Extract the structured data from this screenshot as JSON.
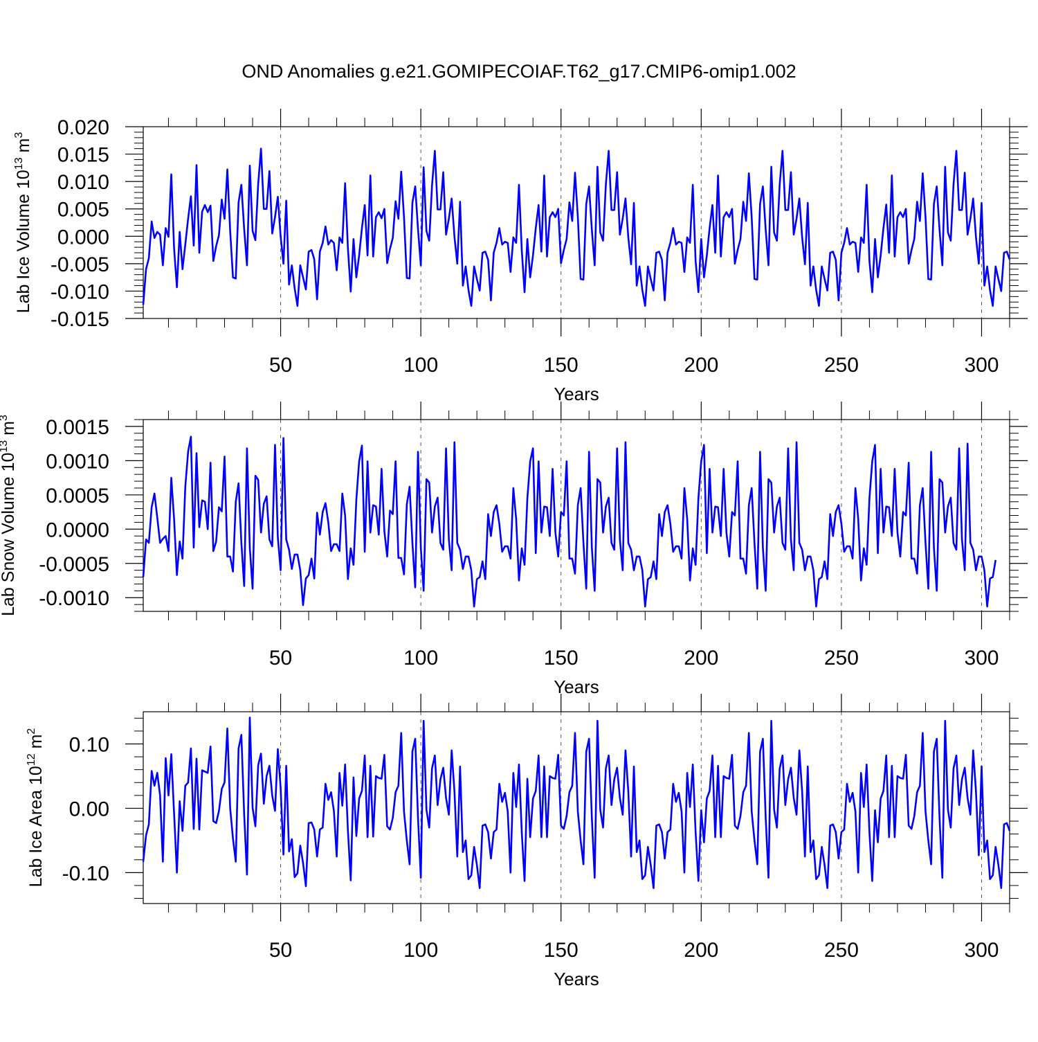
{
  "title": "OND Anomalies g.e21.GOMIPECOIAF.T62_g17.CMIP6-omip1.002",
  "series_color": "#0000ff",
  "chart_data": [
    {
      "type": "line",
      "ylabel": "Lab Ice Volume 10",
      "ylabel_exp": "13",
      "ylabel_unit": " m",
      "ylabel_unit_exp": "3",
      "xlabel": "Years",
      "xlim": [
        1,
        310
      ],
      "ylim": [
        -0.015,
        0.02
      ],
      "xticks": [
        50,
        100,
        150,
        200,
        250,
        300
      ],
      "xtick_labels": [
        "50",
        "100",
        "150",
        "200",
        "250",
        "300"
      ],
      "yticks": [
        -0.015,
        -0.01,
        -0.005,
        0.0,
        0.005,
        0.01,
        0.015,
        0.02
      ],
      "ytick_labels": [
        "-0.015",
        "-0.010",
        "-0.005",
        "0.000",
        "0.005",
        "0.010",
        "0.015",
        "0.020"
      ],
      "x_start": 1,
      "values": [
        -0.0125,
        -0.006,
        -0.004,
        0.0027,
        -0.0003,
        0.0008,
        0.0003,
        -0.0053,
        0.0015,
        -0.0001,
        0.0113,
        -0.0022,
        -0.0093,
        0.0008,
        -0.006,
        -0.0015,
        0.0032,
        0.0073,
        -0.0017,
        0.013,
        -0.003,
        0.0045,
        0.0057,
        0.0044,
        0.0056,
        -0.0045,
        -0.0018,
        0.0002,
        0.0067,
        0.0032,
        0.0122,
        0.001,
        -0.0075,
        -0.0077,
        0.0062,
        0.0094,
        0.0013,
        -0.0053,
        0.0129,
        0.001,
        -0.0007,
        0.0096,
        0.016,
        0.005,
        0.005,
        0.0119,
        0.0005,
        0.0035,
        0.0072,
        0.0,
        -0.005,
        0.0065,
        -0.0088,
        -0.0053,
        -0.0095,
        -0.0127,
        -0.0053,
        -0.0075,
        -0.0097,
        -0.0028,
        -0.0025,
        -0.0042,
        -0.0115,
        -0.0028,
        -0.0012,
        0.0018,
        -0.0015,
        -0.0007,
        -0.0012,
        -0.0062,
        -0.0002,
        -0.0012,
        0.0097,
        -0.0022,
        -0.0101,
        -0.0005,
        -0.0075,
        -0.0035,
        0.0015,
        0.0057,
        -0.0035,
        0.0111,
        -0.0037,
        0.0035,
        0.0044,
        0.0033,
        0.005,
        -0.0049,
        -0.0023,
        -0.0003,
        0.0064,
        0.0032,
        0.0118,
        0.0035,
        -0.0076,
        -0.0077,
        0.0061,
        0.0091,
        0.0013,
        -0.0053,
        0.0126,
        0.001,
        -0.0008,
        0.0093,
        0.0156,
        0.0049,
        0.0049,
        0.0117,
        0.0003,
        0.0032,
        0.0069,
        -0.0001,
        -0.005,
        0.0063,
        -0.009,
        -0.0055,
        -0.0098,
        -0.0127,
        -0.0055,
        -0.0078,
        -0.0099,
        -0.003,
        -0.0028,
        -0.0043,
        -0.0117,
        -0.003,
        -0.0012,
        0.0015,
        -0.0015,
        -0.001,
        -0.0012,
        -0.0065,
        -0.0002,
        -0.0012,
        0.0094,
        -0.0025,
        -0.0102,
        -0.0005,
        -0.0075,
        -0.0035,
        0.0015,
        0.0057,
        -0.0028,
        0.0111,
        -0.0037,
        0.0035,
        0.0044,
        0.0035,
        0.005,
        -0.0049,
        -0.0025,
        -0.0005,
        0.0062,
        0.0028,
        0.0116,
        0.0035,
        -0.0078,
        -0.0079,
        0.0059,
        0.0091,
        0.0012,
        -0.0053,
        0.0127,
        0.0007,
        -0.0008,
        0.0095,
        0.0156,
        0.0048,
        0.0048,
        0.0117,
        0.0003,
        0.0032,
        0.0069,
        -0.0002,
        -0.0051,
        0.0061,
        -0.009,
        -0.0055,
        -0.0098,
        -0.0127,
        -0.0055,
        -0.0078,
        -0.0099,
        -0.003,
        -0.0028,
        -0.0043,
        -0.0117,
        -0.003,
        -0.0012,
        0.0015,
        -0.0015,
        -0.001,
        -0.0012,
        -0.0065,
        -0.0002,
        -0.0012,
        0.0094,
        -0.0045,
        -0.0102,
        -0.0005,
        -0.0075,
        -0.0035,
        0.0015,
        0.0057,
        -0.003,
        0.0111,
        -0.0037,
        0.0035,
        0.0044,
        0.0035,
        0.005,
        -0.005,
        -0.0025,
        -0.0005,
        0.0063,
        0.0028,
        0.0115,
        0.0035,
        -0.0078,
        -0.0079,
        0.0059,
        0.0091,
        0.0012,
        -0.0053,
        0.0127,
        0.0007,
        -0.0008,
        0.0095,
        0.0156,
        0.0048,
        0.0048,
        0.0117,
        0.0003,
        0.0032,
        0.0069,
        -0.0002,
        -0.0051,
        0.0061,
        -0.009,
        -0.0055,
        -0.0098,
        -0.0127,
        -0.0055,
        -0.0078,
        -0.0099,
        -0.003,
        -0.0028,
        -0.0043,
        -0.0117,
        -0.003,
        -0.0012,
        0.0015,
        -0.0015,
        -0.001,
        -0.0012,
        -0.0065,
        -0.0002,
        -0.0012,
        0.0094,
        -0.0045,
        -0.0102,
        -0.0005,
        -0.0075,
        -0.0035,
        0.0015,
        0.0058,
        -0.003,
        0.0111,
        -0.0037,
        0.0035,
        0.0044,
        0.0035,
        0.005,
        -0.005,
        -0.0025,
        -0.0005,
        0.0063,
        0.0028,
        0.0115,
        0.0035,
        -0.0078,
        -0.0079,
        0.0059,
        0.0091,
        0.0012,
        -0.0053,
        0.0127,
        0.0007,
        -0.0008,
        0.0095,
        0.0156,
        0.0048,
        0.0048,
        0.0116,
        0.0003,
        0.0032,
        0.0069,
        -0.0002,
        -0.005,
        0.0061,
        -0.009,
        -0.0055,
        -0.0098,
        -0.0127,
        -0.0055,
        -0.0078,
        -0.01,
        -0.003,
        -0.0028,
        -0.0042
      ]
    },
    {
      "type": "line",
      "ylabel": "Lab Snow Volume 10",
      "ylabel_exp": "13",
      "ylabel_unit": " m",
      "ylabel_unit_exp": "3",
      "xlabel": "Years",
      "xlim": [
        1,
        310
      ],
      "ylim": [
        -0.0012,
        0.0016
      ],
      "xticks": [
        50,
        100,
        150,
        200,
        250,
        300
      ],
      "xtick_labels": [
        "50",
        "100",
        "150",
        "200",
        "250",
        "300"
      ],
      "yticks": [
        -0.001,
        -0.0005,
        0.0,
        0.0005,
        0.001,
        0.0015
      ],
      "ytick_labels": [
        "-0.0010",
        "-0.0005",
        "0.0000",
        "0.0005",
        "0.0010",
        "0.0015"
      ],
      "x_start": 1,
      "values": [
        -0.0007,
        -0.00015,
        -0.0002,
        0.00032,
        0.00052,
        0.00017,
        -0.0002,
        -0.00014,
        -0.0001,
        -0.00032,
        0.00075,
        0.00015,
        -0.00067,
        -0.00018,
        -0.00043,
        0.00062,
        0.00113,
        0.00135,
        -0.00027,
        0.00111,
        3e-05,
        0.00042,
        0.0004,
        0.0,
        0.00097,
        -0.00032,
        -0.00018,
        0.00032,
        0.00026,
        0.00106,
        -0.0004,
        -0.0004,
        -0.00062,
        0.0004,
        0.00067,
        -0.0002,
        -0.00083,
        0.00118,
        -0.00027,
        -0.00087,
        0.00078,
        0.00072,
        -5e-05,
        0.00037,
        0.00048,
        -0.00015,
        -0.00025,
        0.00123,
        -0.00012,
        -0.0006,
        0.00133,
        -0.00015,
        -0.0003,
        -0.00058,
        -0.00037,
        -0.00037,
        -0.0006,
        -0.00111,
        -0.00072,
        -0.00067,
        -0.00043,
        -0.00072,
        0.00024,
        -8e-05,
        0.00025,
        0.00038,
        0.0001,
        -0.00032,
        -0.00022,
        -0.00022,
        -0.00032,
        0.00052,
        0.0002,
        -0.00073,
        -0.00028,
        -0.00052,
        0.00043,
        0.00099,
        0.00122,
        -0.00033,
        0.00099,
        -5e-05,
        0.00035,
        0.00033,
        -8e-05,
        0.00088,
        -3e-05,
        -0.0004,
        0.00027,
        0.00022,
        0.00099,
        -0.00042,
        -0.00042,
        -0.00066,
        0.00036,
        0.00062,
        -0.0002,
        -0.00085,
        0.00113,
        -0.00027,
        -0.0009,
        0.00073,
        0.00068,
        -5e-05,
        0.00033,
        0.00046,
        -0.0002,
        -0.0003,
        0.00118,
        -0.00015,
        -0.0006,
        0.00127,
        -0.0002,
        -0.0003,
        -0.00058,
        -0.0004,
        -0.0004,
        -0.0006,
        -0.00113,
        -0.00073,
        -0.0007,
        -0.00047,
        -0.00073,
        0.00022,
        -0.0001,
        0.00025,
        0.00035,
        8e-05,
        -0.00033,
        -0.00025,
        -0.00025,
        -0.00043,
        0.0006,
        0.00015,
        -0.00075,
        -0.00028,
        -0.00052,
        0.00045,
        0.00099,
        0.00118,
        -0.00035,
        0.00099,
        -5e-05,
        0.00033,
        0.00032,
        -0.0001,
        0.00088,
        -5e-05,
        -0.0004,
        0.00025,
        0.0002,
        0.00099,
        -0.00043,
        -0.00043,
        -0.00065,
        0.00035,
        0.0006,
        -0.0002,
        -0.00087,
        0.00113,
        -0.00027,
        -0.0009,
        0.00073,
        0.00068,
        -5e-05,
        0.00033,
        0.00046,
        -0.0002,
        -0.0003,
        0.00118,
        -0.00015,
        -0.0006,
        0.00127,
        -0.0002,
        -0.0003,
        -0.0006,
        -0.0004,
        -0.0004,
        -0.0006,
        -0.00113,
        -0.00073,
        -0.0007,
        -0.00047,
        -0.00073,
        0.00022,
        -0.0001,
        0.00025,
        0.00035,
        8e-05,
        -0.00033,
        -0.00025,
        -0.00025,
        -0.00043,
        0.0006,
        0.00015,
        -0.00075,
        -0.00028,
        -0.00052,
        0.00045,
        0.00099,
        0.00123,
        -0.00035,
        0.00088,
        -5e-05,
        0.00033,
        0.00032,
        -0.0001,
        0.00088,
        -5e-05,
        -0.0004,
        0.00025,
        0.0002,
        0.00099,
        -0.00043,
        -0.00043,
        -0.00065,
        0.00035,
        0.0006,
        -0.0002,
        -0.00087,
        0.00113,
        -0.00027,
        -0.0009,
        0.00073,
        0.00068,
        -5e-05,
        0.00033,
        0.00046,
        -0.0002,
        -0.0003,
        0.00118,
        -0.00015,
        -0.0006,
        0.00127,
        -0.0002,
        -0.0003,
        -0.0006,
        -0.0004,
        -0.0004,
        -0.0006,
        -0.00113,
        -0.00073,
        -0.0007,
        -0.00047,
        -0.00073,
        0.00022,
        -0.0001,
        0.00025,
        0.00035,
        8e-05,
        -0.00033,
        -0.00025,
        -0.00025,
        -0.00043,
        0.0006,
        0.00015,
        -0.00075,
        -0.00028,
        -0.00052,
        0.00045,
        0.00099,
        0.00123,
        -0.00035,
        0.00088,
        -5e-05,
        0.00033,
        0.00032,
        -0.0001,
        0.00088,
        -5e-05,
        -0.0004,
        0.00025,
        0.0002,
        0.00097,
        -0.00043,
        -0.00043,
        -0.00065,
        0.00035,
        0.0006,
        -0.0002,
        -0.00087,
        0.00113,
        -0.00027,
        -0.0009,
        0.00073,
        0.00068,
        -5e-05,
        0.00033,
        0.00046,
        -0.0002,
        -0.0003,
        0.00118,
        -0.00015,
        -0.0006,
        0.00125,
        -0.0002,
        -0.0003,
        -0.0006,
        -0.0004,
        -0.0004,
        -0.0006,
        -0.00113,
        -0.00072,
        -0.0007,
        -0.00045
      ]
    },
    {
      "type": "line",
      "ylabel": "Lab Ice Area 10",
      "ylabel_exp": "12",
      "ylabel_unit": " m",
      "ylabel_unit_exp": "2",
      "xlabel": "Years",
      "xlim": [
        1,
        310
      ],
      "ylim": [
        -0.148,
        0.15
      ],
      "xticks": [
        50,
        100,
        150,
        200,
        250,
        300
      ],
      "xtick_labels": [
        "50",
        "100",
        "150",
        "200",
        "250",
        "300"
      ],
      "yticks": [
        -0.1,
        0.0,
        0.1
      ],
      "ytick_labels": [
        "-0.10",
        "0.00",
        "0.10"
      ],
      "x_start": 1,
      "values": [
        -0.083,
        -0.042,
        -0.025,
        0.058,
        0.035,
        0.055,
        0.02,
        -0.083,
        0.078,
        0.02,
        0.084,
        -0.008,
        -0.1,
        0.011,
        -0.035,
        0.035,
        0.04,
        0.093,
        -0.032,
        0.077,
        -0.033,
        0.059,
        0.057,
        0.055,
        0.096,
        -0.02,
        -0.023,
        -0.004,
        0.03,
        0.04,
        0.124,
        0.0,
        -0.047,
        -0.083,
        0.093,
        0.114,
        -0.01,
        -0.103,
        0.141,
        0.001,
        -0.028,
        0.067,
        0.085,
        0.007,
        0.05,
        0.066,
        0.02,
        -0.004,
        0.092,
        0.032,
        -0.072,
        0.066,
        -0.067,
        -0.048,
        -0.107,
        -0.101,
        -0.058,
        -0.085,
        -0.121,
        -0.023,
        -0.022,
        -0.033,
        -0.075,
        -0.033,
        -0.03,
        0.038,
        0.013,
        0.025,
        -0.004,
        -0.075,
        0.055,
        0.004,
        0.068,
        -0.035,
        -0.112,
        0.048,
        -0.043,
        0.015,
        0.027,
        0.082,
        -0.045,
        0.066,
        -0.044,
        0.05,
        0.047,
        0.046,
        0.083,
        -0.028,
        -0.033,
        -0.015,
        0.025,
        0.035,
        0.117,
        -0.005,
        -0.05,
        -0.087,
        0.088,
        0.108,
        -0.015,
        -0.108,
        0.136,
        -0.002,
        -0.03,
        0.062,
        0.082,
        0.005,
        0.045,
        0.063,
        0.016,
        -0.01,
        0.09,
        0.026,
        -0.075,
        0.065,
        -0.068,
        -0.05,
        -0.11,
        -0.104,
        -0.06,
        -0.088,
        -0.124,
        -0.027,
        -0.025,
        -0.037,
        -0.078,
        -0.037,
        -0.033,
        0.038,
        0.01,
        0.024,
        -0.005,
        -0.1,
        0.055,
        0.002,
        0.068,
        -0.037,
        -0.113,
        0.046,
        -0.045,
        0.015,
        0.027,
        0.082,
        -0.045,
        0.065,
        -0.045,
        0.05,
        0.047,
        0.046,
        0.083,
        -0.027,
        -0.032,
        -0.012,
        0.025,
        0.035,
        0.117,
        -0.005,
        -0.05,
        -0.087,
        0.088,
        0.108,
        -0.015,
        -0.108,
        0.136,
        -0.002,
        -0.03,
        0.062,
        0.082,
        0.005,
        0.045,
        0.063,
        0.016,
        -0.01,
        0.09,
        0.026,
        -0.075,
        0.065,
        -0.068,
        -0.05,
        -0.11,
        -0.104,
        -0.06,
        -0.088,
        -0.124,
        -0.027,
        -0.025,
        -0.037,
        -0.078,
        -0.037,
        -0.033,
        0.038,
        0.01,
        0.024,
        -0.005,
        -0.1,
        0.055,
        0.002,
        0.068,
        -0.037,
        -0.113,
        -0.003,
        -0.053,
        0.015,
        0.027,
        0.082,
        -0.045,
        0.066,
        -0.045,
        0.05,
        0.047,
        0.046,
        0.083,
        -0.027,
        -0.032,
        -0.012,
        0.025,
        0.035,
        0.117,
        -0.005,
        -0.05,
        -0.087,
        0.088,
        0.108,
        -0.015,
        -0.108,
        0.136,
        -0.002,
        -0.03,
        0.062,
        0.082,
        0.005,
        0.045,
        0.063,
        0.016,
        -0.01,
        0.09,
        0.026,
        -0.075,
        0.065,
        -0.068,
        -0.05,
        -0.11,
        -0.104,
        -0.06,
        -0.088,
        -0.124,
        -0.027,
        -0.025,
        -0.037,
        -0.078,
        -0.037,
        -0.033,
        0.038,
        0.01,
        0.024,
        -0.005,
        -0.1,
        0.055,
        0.002,
        0.068,
        -0.037,
        -0.113,
        -0.003,
        -0.053,
        0.015,
        0.027,
        0.082,
        -0.045,
        0.066,
        -0.045,
        0.05,
        0.047,
        0.046,
        0.083,
        -0.027,
        -0.032,
        -0.012,
        0.025,
        0.035,
        0.117,
        -0.005,
        -0.05,
        -0.087,
        0.088,
        0.108,
        -0.015,
        -0.108,
        0.136,
        -0.002,
        -0.03,
        0.062,
        0.082,
        0.005,
        0.045,
        0.063,
        0.016,
        -0.01,
        0.09,
        0.026,
        -0.073,
        0.065,
        -0.068,
        -0.05,
        -0.11,
        -0.104,
        -0.06,
        -0.088,
        -0.124,
        -0.025,
        -0.023,
        -0.035
      ]
    }
  ]
}
